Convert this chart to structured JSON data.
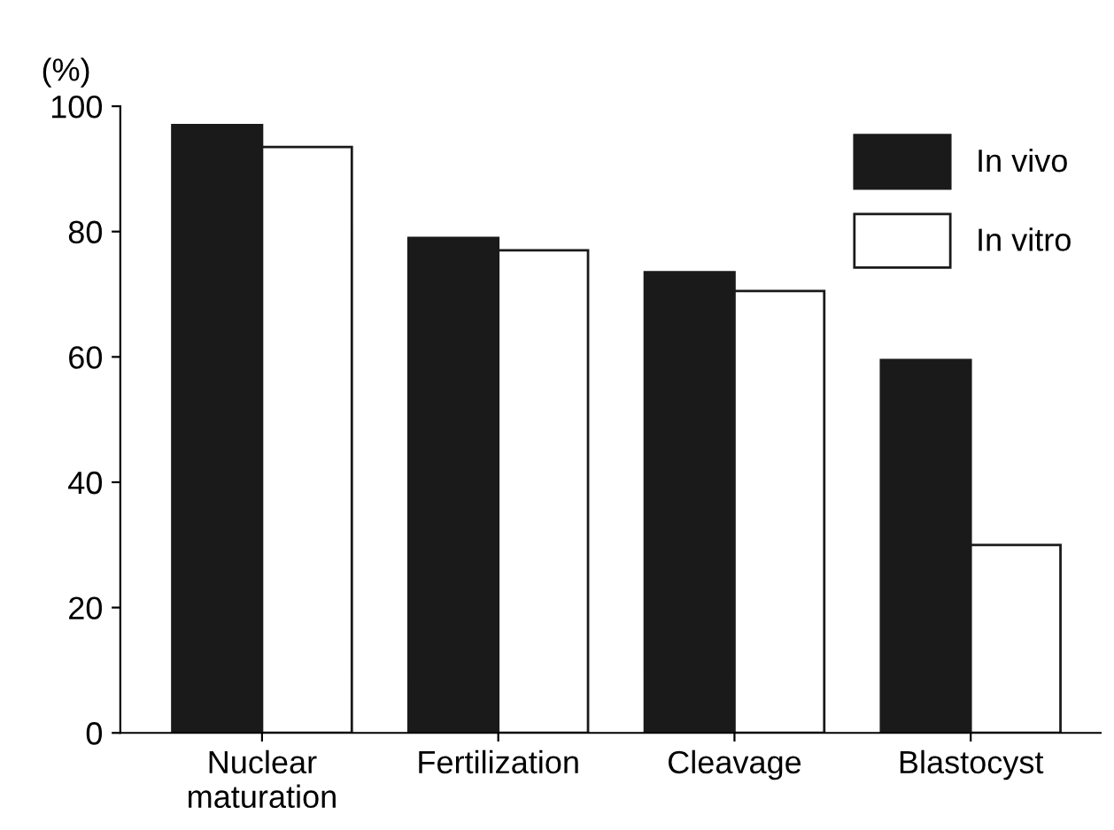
{
  "chart_data": {
    "type": "bar",
    "ylabel": "(%)",
    "categories": [
      "Nuclear\nmaturation",
      "Fertilization",
      "Cleavage",
      "Blastocyst"
    ],
    "series": [
      {
        "name": "In vivo",
        "color": "#1a1a1a",
        "values": [
          97,
          79,
          73.5,
          59.5
        ]
      },
      {
        "name": "In vitro",
        "color": "#ffffff",
        "values": [
          93.5,
          77,
          70.5,
          30
        ]
      }
    ],
    "ylim": [
      0,
      100
    ],
    "yticks": [
      0,
      20,
      40,
      60,
      80,
      100
    ],
    "grid": false,
    "legend": "top right"
  }
}
